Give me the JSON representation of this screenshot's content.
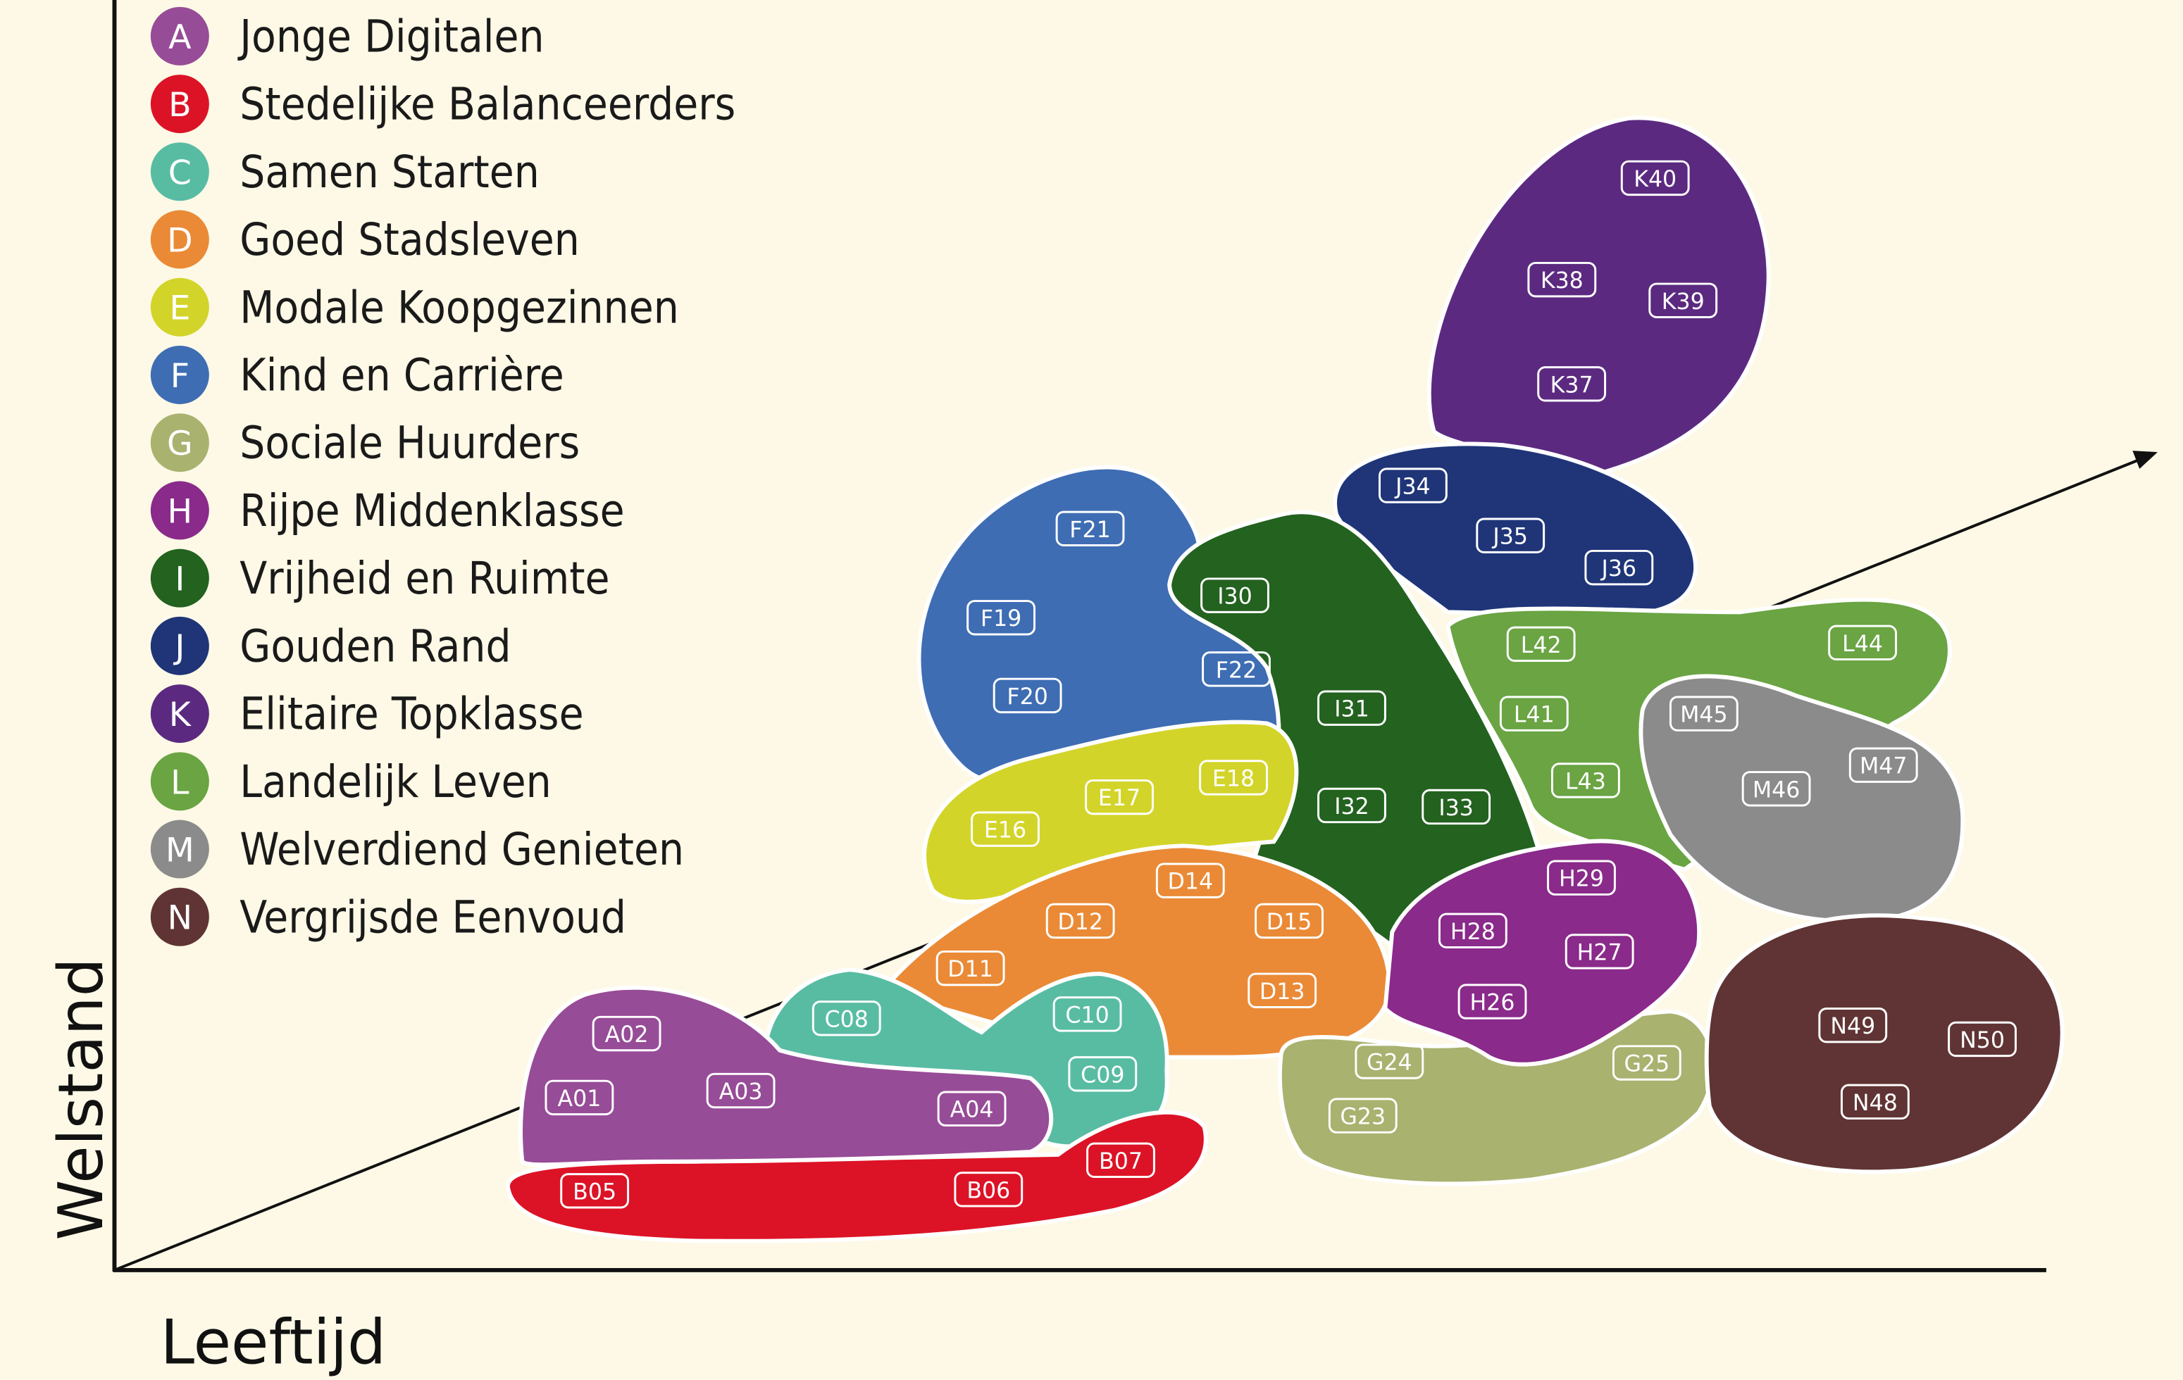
{
  "legend": [
    {
      "letter": "A",
      "name": "Jonge Digitalen"
    },
    {
      "letter": "B",
      "name": "Stedelijke Balanceerders"
    },
    {
      "letter": "C",
      "name": "Samen Starten"
    },
    {
      "letter": "D",
      "name": "Goed Stadsleven"
    },
    {
      "letter": "E",
      "name": "Modale Koopgezinnen"
    },
    {
      "letter": "F",
      "name": "Kind en Carrière"
    },
    {
      "letter": "G",
      "name": "Sociale Huurders"
    },
    {
      "letter": "H",
      "name": "Rijpe Middenklasse"
    },
    {
      "letter": "I",
      "name": "Vrijheid en Ruimte"
    },
    {
      "letter": "J",
      "name": "Gouden Rand"
    },
    {
      "letter": "K",
      "name": "Elitaire Topklasse"
    },
    {
      "letter": "L",
      "name": "Landelijk Leven"
    },
    {
      "letter": "M",
      "name": "Welverdiend Genieten"
    },
    {
      "letter": "N",
      "name": "Vergrijsde Eenvoud"
    }
  ],
  "axes": {
    "y": "Welstand",
    "x": "Leeftijd"
  },
  "segments": [
    "K40",
    "K38",
    "K39",
    "K37",
    "J34",
    "J35",
    "J36",
    "F21",
    "F19",
    "F20",
    "F22",
    "I30",
    "I31",
    "I32",
    "I33",
    "L42",
    "L44",
    "L41",
    "L43",
    "M45",
    "M46",
    "M47",
    "E16",
    "E17",
    "E18",
    "D14",
    "D12",
    "D15",
    "D11",
    "D13",
    "C08",
    "C10",
    "C09",
    "A02",
    "A01",
    "A03",
    "A04",
    "B05",
    "B06",
    "B07",
    "H29",
    "H28",
    "H27",
    "H26",
    "G24",
    "G25",
    "G23",
    "N49",
    "N50",
    "N48"
  ]
}
